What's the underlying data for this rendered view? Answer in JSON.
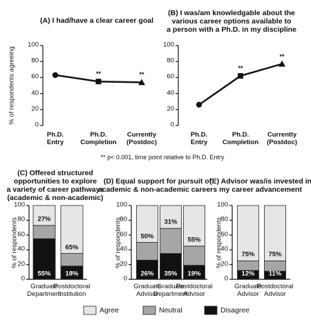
{
  "chart_data": [
    {
      "type": "line",
      "title": "(A) I had/have a clear career goal",
      "ylabel": "% of respondents agreeing",
      "categories": [
        "Ph.D.\nEntry",
        "Ph.D.\nCompletion",
        "Currently\n(Postdoc)"
      ],
      "values": [
        63,
        55,
        54
      ],
      "annotations": [
        null,
        "**",
        "**"
      ],
      "markers": [
        "circle",
        "square",
        "triangle"
      ],
      "color": "#111111",
      "ylim": [
        0,
        100
      ],
      "yticks": [
        0,
        20,
        40,
        60,
        80,
        100
      ]
    },
    {
      "type": "line",
      "title": "(B) I was/am knowledgable about the\nvarious career options available to\na person with a Ph.D. in my discipline",
      "categories": [
        "Ph.D.\nEntry",
        "Ph.D.\nCompletion",
        "Currently\n(Postdoc)"
      ],
      "values": [
        26,
        62,
        77
      ],
      "annotations": [
        null,
        "**",
        "**"
      ],
      "markers": [
        "circle",
        "square",
        "triangle"
      ],
      "color": "#111111",
      "ylim": [
        0,
        100
      ],
      "yticks": [
        0,
        20,
        40,
        60,
        80,
        100
      ]
    },
    {
      "type": "bar",
      "stacked": true,
      "title": "(C) Offered structured\nopportunities to explore\na variety of career pathways\n(academic & non-academic)",
      "ylabel": "% of respondents",
      "categories": [
        "Graduate\nDepartment",
        "Postdoctoral\nInstitution"
      ],
      "series": [
        {
          "name": "Agree",
          "color": "#e6e6e6",
          "values": [
            27,
            65
          ],
          "value_labels": [
            "27%",
            "65%"
          ]
        },
        {
          "name": "Neutral",
          "color": "#a6a6a6",
          "values": [
            18,
            17
          ]
        },
        {
          "name": "Disagree",
          "color": "#111111",
          "values": [
            55,
            18
          ],
          "value_labels": [
            "55%",
            "18%"
          ]
        }
      ],
      "ylim": [
        0,
        100
      ],
      "yticks": [
        0,
        20,
        40,
        60,
        80,
        100
      ]
    },
    {
      "type": "bar",
      "stacked": true,
      "title": "(D) Equal support for pursuit of\nacademic & non-academic careers",
      "ylabel": "% of respondents",
      "categories": [
        "Graduate\nAdvisor",
        "Graduate\nDepartment",
        "Postdoctoral\nAdvisor"
      ],
      "series": [
        {
          "name": "Agree",
          "color": "#e6e6e6",
          "values": [
            50,
            31,
            55
          ],
          "value_labels": [
            "50%",
            "31%",
            "55%"
          ]
        },
        {
          "name": "Neutral",
          "color": "#a6a6a6",
          "values": [
            24,
            34,
            26
          ]
        },
        {
          "name": "Disagree",
          "color": "#111111",
          "values": [
            26,
            35,
            19
          ],
          "value_labels": [
            "26%",
            "35%",
            "19%"
          ]
        }
      ],
      "ylim": [
        0,
        100
      ],
      "yticks": [
        0,
        20,
        40,
        60,
        80,
        100
      ]
    },
    {
      "type": "bar",
      "stacked": true,
      "title": "(E) Advisor was/is invested in\nmy career advancement",
      "ylabel": "% of respondents",
      "categories": [
        "Graduate\nAdvisor",
        "Postdoctoral\nAdvisor"
      ],
      "series": [
        {
          "name": "Agree",
          "color": "#e6e6e6",
          "values": [
            75,
            75
          ],
          "value_labels": [
            "75%",
            "75%"
          ]
        },
        {
          "name": "Neutral",
          "color": "#a6a6a6",
          "values": [
            13,
            14
          ]
        },
        {
          "name": "Disagree",
          "color": "#111111",
          "values": [
            12,
            11
          ],
          "value_labels": [
            "12%",
            "11%"
          ]
        }
      ],
      "ylim": [
        0,
        100
      ],
      "yticks": [
        0,
        20,
        40,
        60,
        80,
        100
      ]
    }
  ],
  "footnote": "** p< 0.001, time point relative to Ph.D. Entry"
}
